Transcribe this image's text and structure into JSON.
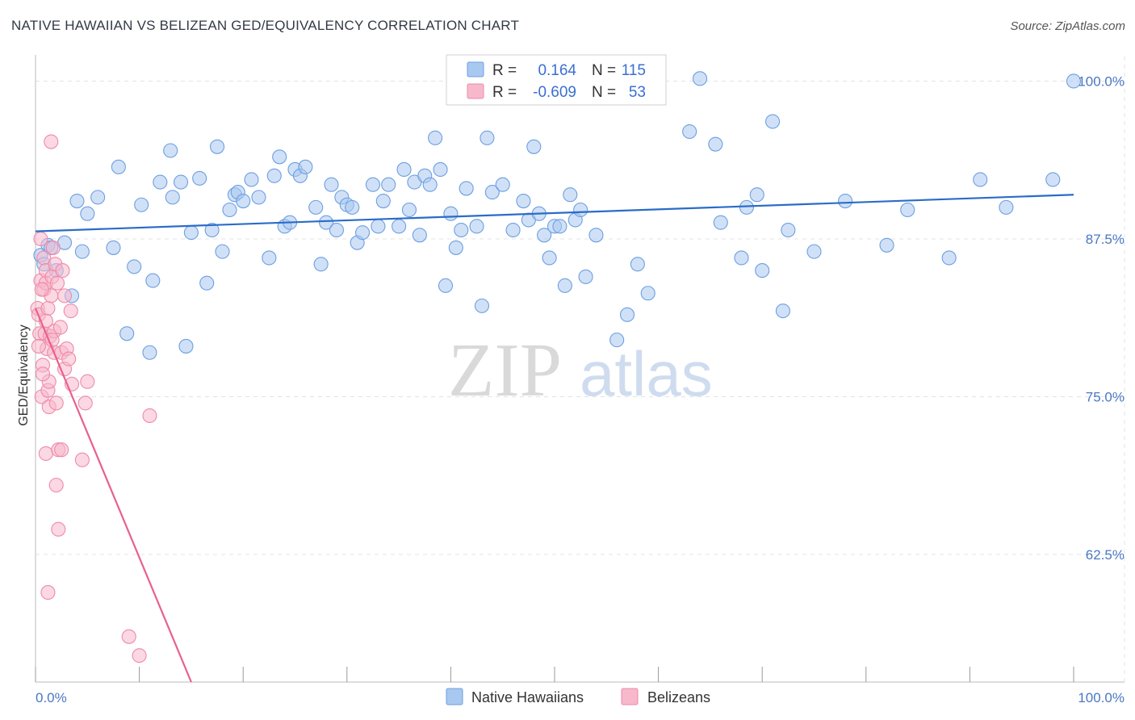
{
  "title": "NATIVE HAWAIIAN VS BELIZEAN GED/EQUIVALENCY CORRELATION CHART",
  "source": "Source: ZipAtlas.com",
  "watermark": {
    "zip": "ZIP",
    "atlas": "atlas"
  },
  "colors": {
    "blue_fill": "#a9c8f0",
    "blue_stroke": "#6d9fe0",
    "blue_line": "#2a6cc8",
    "pink_fill": "#f7b8cc",
    "pink_stroke": "#ee8aaa",
    "pink_line": "#e8608e",
    "grid": "#e3e3e3",
    "axis_text": "#4a77c4"
  },
  "legend": {
    "rows": [
      {
        "r_label": "R =",
        "r_value": "0.164",
        "n_label": "N =",
        "n_value": "115"
      },
      {
        "r_label": "R =",
        "r_value": "-0.609",
        "n_label": "N =",
        "n_value": "53"
      }
    ]
  },
  "chart_data": {
    "type": "scatter",
    "title": "NATIVE HAWAIIAN VS BELIZEAN GED/EQUIVALENCY CORRELATION CHART",
    "xlabel": "",
    "ylabel": "GED/Equivalency",
    "xlim": [
      0,
      100
    ],
    "ylim": [
      52.4,
      101.5
    ],
    "x_tick_labels": [
      "0.0%",
      "100.0%"
    ],
    "y_ticks": [
      62.5,
      75.0,
      87.5,
      100.0
    ],
    "y_tick_labels": [
      "62.5%",
      "75.0%",
      "87.5%",
      "100.0%"
    ],
    "grid": true,
    "legend_position": "bottom",
    "series": [
      {
        "name": "Native Hawaiians",
        "r": 0.164,
        "n": 115,
        "trend": {
          "x": [
            0,
            100
          ],
          "y": [
            88.1,
            91.0
          ]
        },
        "points": [
          [
            0.5,
            86.2
          ],
          [
            0.8,
            85.5
          ],
          [
            1.2,
            87.0
          ],
          [
            1.5,
            86.8
          ],
          [
            2.0,
            85.0
          ],
          [
            2.8,
            87.2
          ],
          [
            3.5,
            83.0
          ],
          [
            4.0,
            90.5
          ],
          [
            4.5,
            86.5
          ],
          [
            5.0,
            89.5
          ],
          [
            6.0,
            90.8
          ],
          [
            7.5,
            86.8
          ],
          [
            8.0,
            93.2
          ],
          [
            8.8,
            80.0
          ],
          [
            9.5,
            85.3
          ],
          [
            10.2,
            90.2
          ],
          [
            11.0,
            78.5
          ],
          [
            11.3,
            84.2
          ],
          [
            12.0,
            92.0
          ],
          [
            13.0,
            94.5
          ],
          [
            13.2,
            90.8
          ],
          [
            14.0,
            92.0
          ],
          [
            14.5,
            79.0
          ],
          [
            15.0,
            88.0
          ],
          [
            15.8,
            92.3
          ],
          [
            16.5,
            84.0
          ],
          [
            17.0,
            88.2
          ],
          [
            17.5,
            94.8
          ],
          [
            18.0,
            86.5
          ],
          [
            18.7,
            89.8
          ],
          [
            19.2,
            91.0
          ],
          [
            19.5,
            91.2
          ],
          [
            20.0,
            90.5
          ],
          [
            20.8,
            92.2
          ],
          [
            21.5,
            90.8
          ],
          [
            22.5,
            86.0
          ],
          [
            23.0,
            92.5
          ],
          [
            23.5,
            94.0
          ],
          [
            24.0,
            88.5
          ],
          [
            24.5,
            88.8
          ],
          [
            25.0,
            93.0
          ],
          [
            25.5,
            92.5
          ],
          [
            26.0,
            93.2
          ],
          [
            27.0,
            90.0
          ],
          [
            27.5,
            85.5
          ],
          [
            28.0,
            88.8
          ],
          [
            28.5,
            91.8
          ],
          [
            29.0,
            88.2
          ],
          [
            29.5,
            90.8
          ],
          [
            30.0,
            90.2
          ],
          [
            30.5,
            90.0
          ],
          [
            31.0,
            87.2
          ],
          [
            31.5,
            88.0
          ],
          [
            32.5,
            91.8
          ],
          [
            33.0,
            88.5
          ],
          [
            33.5,
            90.5
          ],
          [
            34.0,
            91.8
          ],
          [
            35.0,
            88.5
          ],
          [
            35.5,
            93.0
          ],
          [
            36.0,
            89.8
          ],
          [
            36.5,
            92.0
          ],
          [
            37.0,
            87.8
          ],
          [
            37.5,
            92.5
          ],
          [
            38.0,
            91.8
          ],
          [
            38.5,
            95.5
          ],
          [
            39.0,
            93.0
          ],
          [
            39.5,
            83.8
          ],
          [
            40.0,
            89.5
          ],
          [
            40.5,
            86.8
          ],
          [
            41.0,
            88.2
          ],
          [
            41.5,
            91.5
          ],
          [
            42.5,
            88.5
          ],
          [
            43.0,
            82.2
          ],
          [
            43.5,
            95.5
          ],
          [
            44.0,
            91.2
          ],
          [
            45.0,
            91.8
          ],
          [
            46.0,
            88.2
          ],
          [
            47.0,
            90.5
          ],
          [
            47.5,
            89.0
          ],
          [
            48.0,
            94.8
          ],
          [
            48.5,
            89.5
          ],
          [
            49.0,
            87.8
          ],
          [
            49.5,
            86.0
          ],
          [
            50.0,
            88.5
          ],
          [
            50.5,
            88.5
          ],
          [
            51.0,
            83.8
          ],
          [
            51.5,
            91.0
          ],
          [
            52.0,
            89.0
          ],
          [
            52.5,
            89.8
          ],
          [
            53.0,
            84.5
          ],
          [
            54.0,
            87.8
          ],
          [
            56.0,
            79.5
          ],
          [
            57.0,
            81.5
          ],
          [
            58.0,
            85.5
          ],
          [
            59.0,
            83.2
          ],
          [
            63.0,
            96.0
          ],
          [
            64.0,
            100.2
          ],
          [
            65.5,
            95.0
          ],
          [
            66.0,
            88.8
          ],
          [
            68.0,
            86.0
          ],
          [
            68.5,
            90.0
          ],
          [
            69.5,
            91.0
          ],
          [
            70.0,
            85.0
          ],
          [
            71.0,
            96.8
          ],
          [
            72.0,
            81.8
          ],
          [
            72.5,
            88.2
          ],
          [
            75.0,
            86.5
          ],
          [
            78.0,
            90.5
          ],
          [
            82.0,
            87.0
          ],
          [
            84.0,
            89.8
          ],
          [
            88.0,
            86.0
          ],
          [
            91.0,
            92.2
          ],
          [
            93.5,
            90.0
          ],
          [
            98.0,
            92.2
          ],
          [
            100.0,
            100.0
          ]
        ]
      },
      {
        "name": "Belizeans",
        "r": -0.609,
        "n": 53,
        "trend": {
          "x": [
            0,
            15
          ],
          "y": [
            82.0,
            52.4
          ]
        },
        "points": [
          [
            0.2,
            82.0
          ],
          [
            0.3,
            81.5
          ],
          [
            0.4,
            80.0
          ],
          [
            0.5,
            84.2
          ],
          [
            0.5,
            87.5
          ],
          [
            0.6,
            75.0
          ],
          [
            0.7,
            77.5
          ],
          [
            0.8,
            83.5
          ],
          [
            0.8,
            86.0
          ],
          [
            0.9,
            80.0
          ],
          [
            1.0,
            84.0
          ],
          [
            1.0,
            85.0
          ],
          [
            1.0,
            70.5
          ],
          [
            1.1,
            78.8
          ],
          [
            1.2,
            75.5
          ],
          [
            1.2,
            82.0
          ],
          [
            1.3,
            76.2
          ],
          [
            1.3,
            74.2
          ],
          [
            1.4,
            79.8
          ],
          [
            1.5,
            83.0
          ],
          [
            1.5,
            95.2
          ],
          [
            1.6,
            84.5
          ],
          [
            1.7,
            86.8
          ],
          [
            1.8,
            80.2
          ],
          [
            1.8,
            78.5
          ],
          [
            2.0,
            74.5
          ],
          [
            2.0,
            68.0
          ],
          [
            2.2,
            70.8
          ],
          [
            2.2,
            64.5
          ],
          [
            2.5,
            70.8
          ],
          [
            2.5,
            78.5
          ],
          [
            2.8,
            77.2
          ],
          [
            2.8,
            83.0
          ],
          [
            3.0,
            78.8
          ],
          [
            3.2,
            78.0
          ],
          [
            3.4,
            81.8
          ],
          [
            3.5,
            76.0
          ],
          [
            4.8,
            74.5
          ],
          [
            4.5,
            70.0
          ],
          [
            5.0,
            76.2
          ],
          [
            9.0,
            56.0
          ],
          [
            10.0,
            54.5
          ],
          [
            11.0,
            73.5
          ],
          [
            1.2,
            59.5
          ],
          [
            0.7,
            76.8
          ],
          [
            1.9,
            85.5
          ],
          [
            2.1,
            84.0
          ],
          [
            0.3,
            79.0
          ],
          [
            1.6,
            79.5
          ],
          [
            2.4,
            80.5
          ],
          [
            1.0,
            81.0
          ],
          [
            0.6,
            83.5
          ],
          [
            2.6,
            85.0
          ]
        ]
      }
    ]
  },
  "bottom_legend": {
    "items": [
      "Native Hawaiians",
      "Belizeans"
    ]
  }
}
